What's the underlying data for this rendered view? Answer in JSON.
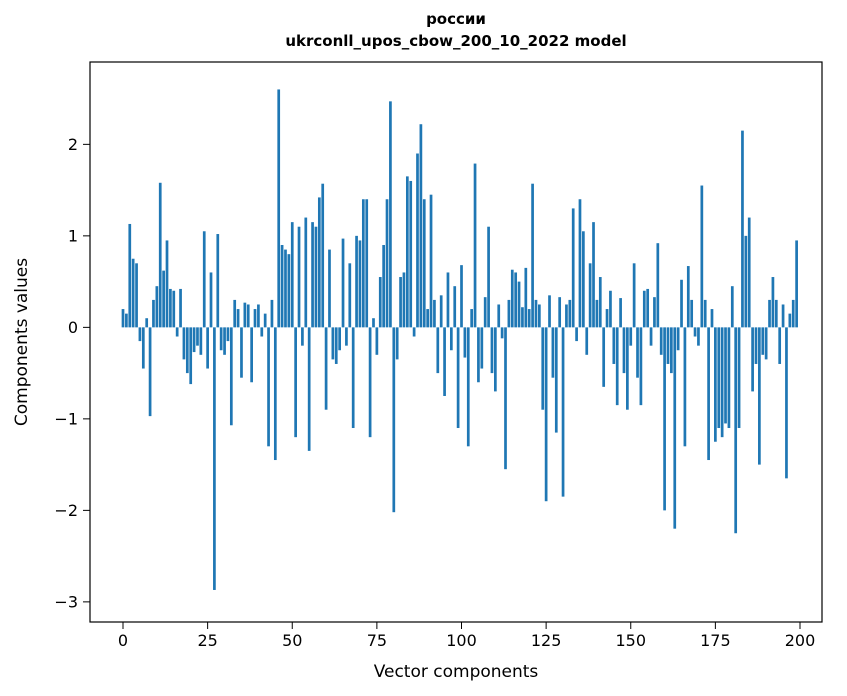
{
  "chart_data": {
    "type": "bar",
    "title": "россии",
    "subtitle": "ukrconll_upos_cbow_200_10_2022 model",
    "xlabel": "Vector components",
    "ylabel": "Components values",
    "bar_color": "#1f77b4",
    "axis_color": "#000000",
    "x_start": 0,
    "bar_width": 0.8,
    "xlim": [
      -9.75,
      206.5
    ],
    "ylim": [
      -3.22,
      2.9
    ],
    "x_tick_values": [
      0,
      25,
      50,
      75,
      100,
      125,
      150,
      175,
      200
    ],
    "x_tick_labels": [
      "0",
      "25",
      "50",
      "75",
      "100",
      "125",
      "150",
      "175",
      "200"
    ],
    "y_tick_values": [
      -3,
      -2,
      -1,
      0,
      1,
      2
    ],
    "y_tick_labels": [
      "−3",
      "−2",
      "−1",
      "0",
      "1",
      "2"
    ],
    "values": [
      0.2,
      0.15,
      1.13,
      0.75,
      0.7,
      -0.15,
      -0.45,
      0.1,
      -0.97,
      0.3,
      0.45,
      1.58,
      0.62,
      0.95,
      0.42,
      0.4,
      -0.1,
      0.42,
      -0.35,
      -0.5,
      -0.62,
      -0.27,
      -0.2,
      -0.3,
      1.05,
      -0.45,
      0.6,
      -2.87,
      1.02,
      -0.25,
      -0.3,
      -0.15,
      -1.07,
      0.3,
      0.2,
      -0.55,
      0.27,
      0.25,
      -0.6,
      0.2,
      0.25,
      -0.1,
      0.15,
      -1.3,
      0.3,
      -1.45,
      2.6,
      0.9,
      0.85,
      0.8,
      1.15,
      -1.2,
      1.1,
      -0.2,
      1.2,
      -1.35,
      1.15,
      1.1,
      1.42,
      1.57,
      -0.9,
      0.85,
      -0.35,
      -0.4,
      -0.25,
      0.97,
      -0.2,
      0.7,
      -1.1,
      1.0,
      0.95,
      1.4,
      1.4,
      -1.2,
      0.1,
      -0.3,
      0.55,
      0.9,
      1.4,
      2.47,
      -2.02,
      -0.35,
      0.55,
      0.6,
      1.65,
      1.6,
      -0.1,
      1.9,
      2.22,
      1.4,
      0.2,
      1.45,
      0.3,
      -0.5,
      0.35,
      -0.75,
      0.6,
      -0.25,
      0.45,
      -1.1,
      0.68,
      -0.33,
      -1.3,
      0.2,
      1.79,
      -0.6,
      -0.45,
      0.33,
      1.1,
      -0.5,
      -0.7,
      0.25,
      -0.12,
      -1.55,
      0.3,
      0.63,
      0.6,
      0.5,
      0.22,
      0.65,
      0.2,
      1.57,
      0.3,
      0.25,
      -0.9,
      -1.9,
      0.35,
      -0.55,
      -1.15,
      0.33,
      -1.85,
      0.25,
      0.3,
      1.3,
      -0.15,
      1.4,
      1.05,
      -0.3,
      0.7,
      1.15,
      0.3,
      0.55,
      -0.65,
      0.2,
      0.4,
      -0.4,
      -0.85,
      0.32,
      -0.5,
      -0.9,
      -0.2,
      0.7,
      -0.55,
      -0.85,
      0.4,
      0.42,
      -0.2,
      0.33,
      0.92,
      -0.3,
      -2.0,
      -0.4,
      -0.5,
      -2.2,
      -0.25,
      0.52,
      -1.3,
      0.67,
      0.3,
      -0.1,
      -0.2,
      1.55,
      0.3,
      -1.45,
      0.2,
      -1.25,
      -1.1,
      -1.2,
      -1.05,
      -1.1,
      0.45,
      -2.25,
      -1.1,
      2.15,
      1.0,
      1.2,
      -0.7,
      -0.4,
      -1.5,
      -0.3,
      -0.35,
      0.3,
      0.55,
      0.3,
      -0.4,
      0.25,
      -1.65,
      0.15,
      0.3,
      0.95
    ]
  }
}
